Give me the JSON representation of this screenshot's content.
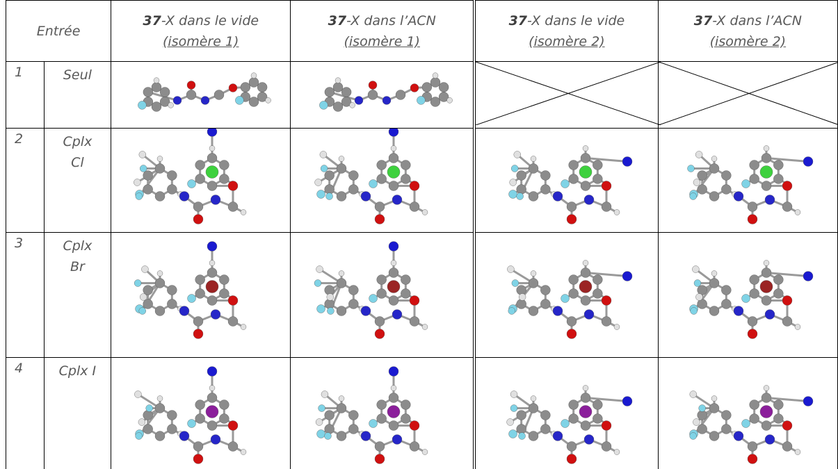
{
  "table": {
    "entry_header": "Entrée",
    "headers": [
      {
        "bold": "37",
        "rest": "-X dans le vide",
        "sub": "(isomère 1)"
      },
      {
        "bold": "37",
        "rest": "-X dans l’ACN",
        "sub": "(isomère 1)"
      },
      {
        "bold": "37",
        "rest": "-X dans le vide",
        "sub": "(isomère 2)"
      },
      {
        "bold": "37",
        "rest": "-X dans l’ACN",
        "sub": "(isomère 2)"
      }
    ],
    "rows": [
      {
        "number": "1",
        "label": [
          "Seul"
        ]
      },
      {
        "number": "2",
        "label": [
          "Cplx",
          "Cl"
        ]
      },
      {
        "number": "3",
        "label": [
          "Cplx",
          "Br"
        ]
      },
      {
        "number": "4",
        "label": [
          "Cplx I"
        ]
      }
    ]
  }
}
